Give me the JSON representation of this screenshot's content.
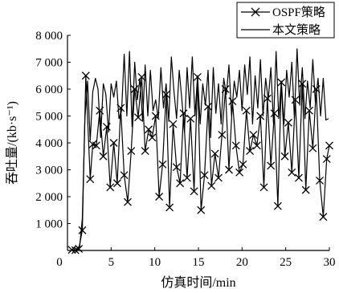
{
  "chart_data": {
    "type": "line",
    "xlabel": "仿真时间/min",
    "ylabel": "吞吐量/(kb·s⁻¹)",
    "xlim": [
      0,
      30
    ],
    "ylim": [
      0,
      8000
    ],
    "x_ticks": [
      0,
      5,
      10,
      15,
      20,
      25,
      30
    ],
    "x_tick_labels": [
      "0",
      "5",
      "10",
      "15",
      "20",
      "25",
      "30"
    ],
    "y_ticks": [
      1000,
      2000,
      3000,
      4000,
      5000,
      6000,
      7000,
      8000
    ],
    "y_tick_labels": [
      "1 000",
      "2 000",
      "3 000",
      "4 000",
      "5 000",
      "6 000",
      "7 000",
      "8 000"
    ],
    "grid": false,
    "legend_position": "top-right",
    "series": [
      {
        "name": "OSPF策略",
        "marker": "x",
        "color": "#000000",
        "x": [
          0.5,
          0.9,
          1.3,
          1.7,
          2.1,
          2.6,
          2.9,
          3.3,
          3.7,
          4.1,
          4.5,
          4.9,
          5.3,
          5.7,
          6.1,
          6.5,
          6.9,
          7.3,
          7.7,
          8.1,
          8.5,
          8.9,
          9.3,
          9.7,
          10.1,
          10.5,
          10.9,
          11.3,
          11.7,
          12.1,
          12.5,
          12.9,
          13.3,
          13.7,
          14.1,
          14.5,
          14.9,
          15.3,
          15.7,
          16.1,
          16.5,
          16.9,
          17.3,
          17.7,
          18.1,
          18.5,
          18.9,
          19.3,
          19.7,
          20.1,
          20.5,
          20.9,
          21.3,
          21.7,
          22.1,
          22.5,
          22.9,
          23.3,
          23.7,
          24.1,
          24.5,
          24.9,
          25.3,
          25.7,
          26.1,
          26.5,
          26.9,
          27.3,
          27.7,
          28.1,
          28.5,
          28.9,
          29.3,
          29.7,
          30.0
        ],
        "y": [
          20,
          10,
          60,
          750,
          6500,
          2650,
          3950,
          3900,
          5200,
          3500,
          4600,
          2350,
          4000,
          2500,
          5300,
          2800,
          1800,
          3700,
          6000,
          4950,
          6450,
          3700,
          4500,
          4200,
          5000,
          2000,
          3200,
          5800,
          1600,
          4700,
          3100,
          2500,
          5100,
          2700,
          4900,
          2200,
          6450,
          1500,
          2800,
          5350,
          2400,
          3600,
          2700,
          4300,
          6000,
          3000,
          5550,
          3900,
          2900,
          3200,
          5200,
          3700,
          4300,
          3900,
          5000,
          2350,
          5650,
          3150,
          5100,
          1650,
          6250,
          3500,
          4750,
          2900,
          5600,
          2700,
          6200,
          2250,
          5200,
          3800,
          6000,
          2600,
          1250,
          3400,
          3900
        ]
      },
      {
        "name": "本文策略",
        "marker": "none",
        "color": "#000000",
        "x": [
          0.5,
          0.8,
          1.1,
          1.4,
          1.7,
          2.0,
          2.3,
          2.6,
          2.9,
          3.2,
          3.5,
          3.8,
          4.1,
          4.4,
          4.7,
          5.0,
          5.3,
          5.6,
          5.9,
          6.2,
          6.5,
          6.8,
          7.1,
          7.4,
          7.7,
          8.0,
          8.3,
          8.6,
          8.9,
          9.2,
          9.5,
          9.8,
          10.1,
          10.4,
          10.7,
          11.0,
          11.3,
          11.6,
          11.9,
          12.2,
          12.5,
          12.8,
          13.1,
          13.4,
          13.7,
          14.0,
          14.3,
          14.6,
          14.9,
          15.2,
          15.5,
          15.8,
          16.1,
          16.4,
          16.7,
          17.0,
          17.3,
          17.6,
          17.9,
          18.2,
          18.5,
          18.8,
          19.1,
          19.4,
          19.7,
          20.0,
          20.3,
          20.6,
          20.9,
          21.2,
          21.5,
          21.8,
          22.1,
          22.4,
          22.7,
          23.0,
          23.3,
          23.6,
          23.9,
          24.2,
          24.5,
          24.8,
          25.1,
          25.4,
          25.7,
          26.0,
          26.3,
          26.6,
          26.9,
          27.2,
          27.5,
          27.8,
          28.1,
          28.4,
          28.7,
          29.0,
          29.3,
          29.6,
          29.9
        ],
        "y": [
          20,
          100,
          40,
          150,
          1200,
          4900,
          6300,
          4100,
          5900,
          6400,
          6000,
          4200,
          6200,
          5800,
          4400,
          6200,
          5700,
          6300,
          4900,
          5200,
          7300,
          5000,
          7400,
          4600,
          7000,
          5600,
          6400,
          4800,
          6900,
          5000,
          6700,
          5200,
          5600,
          4900,
          6800,
          5300,
          6200,
          4800,
          7200,
          5900,
          4900,
          6700,
          5600,
          4400,
          6800,
          5300,
          7200,
          5000,
          6500,
          4700,
          6200,
          5400,
          6700,
          4200,
          6800,
          5100,
          6200,
          4700,
          6400,
          5800,
          6900,
          5000,
          6300,
          5700,
          6700,
          5200,
          6900,
          5800,
          7200,
          4700,
          6500,
          5300,
          7100,
          5000,
          6400,
          5600,
          6800,
          4700,
          7400,
          4900,
          6300,
          4700,
          6700,
          5700,
          7000,
          4900,
          7500,
          5400,
          6800,
          4900,
          6300,
          5300,
          7100,
          5500,
          6400,
          5000,
          6400,
          4850,
          4900
        ]
      }
    ]
  }
}
